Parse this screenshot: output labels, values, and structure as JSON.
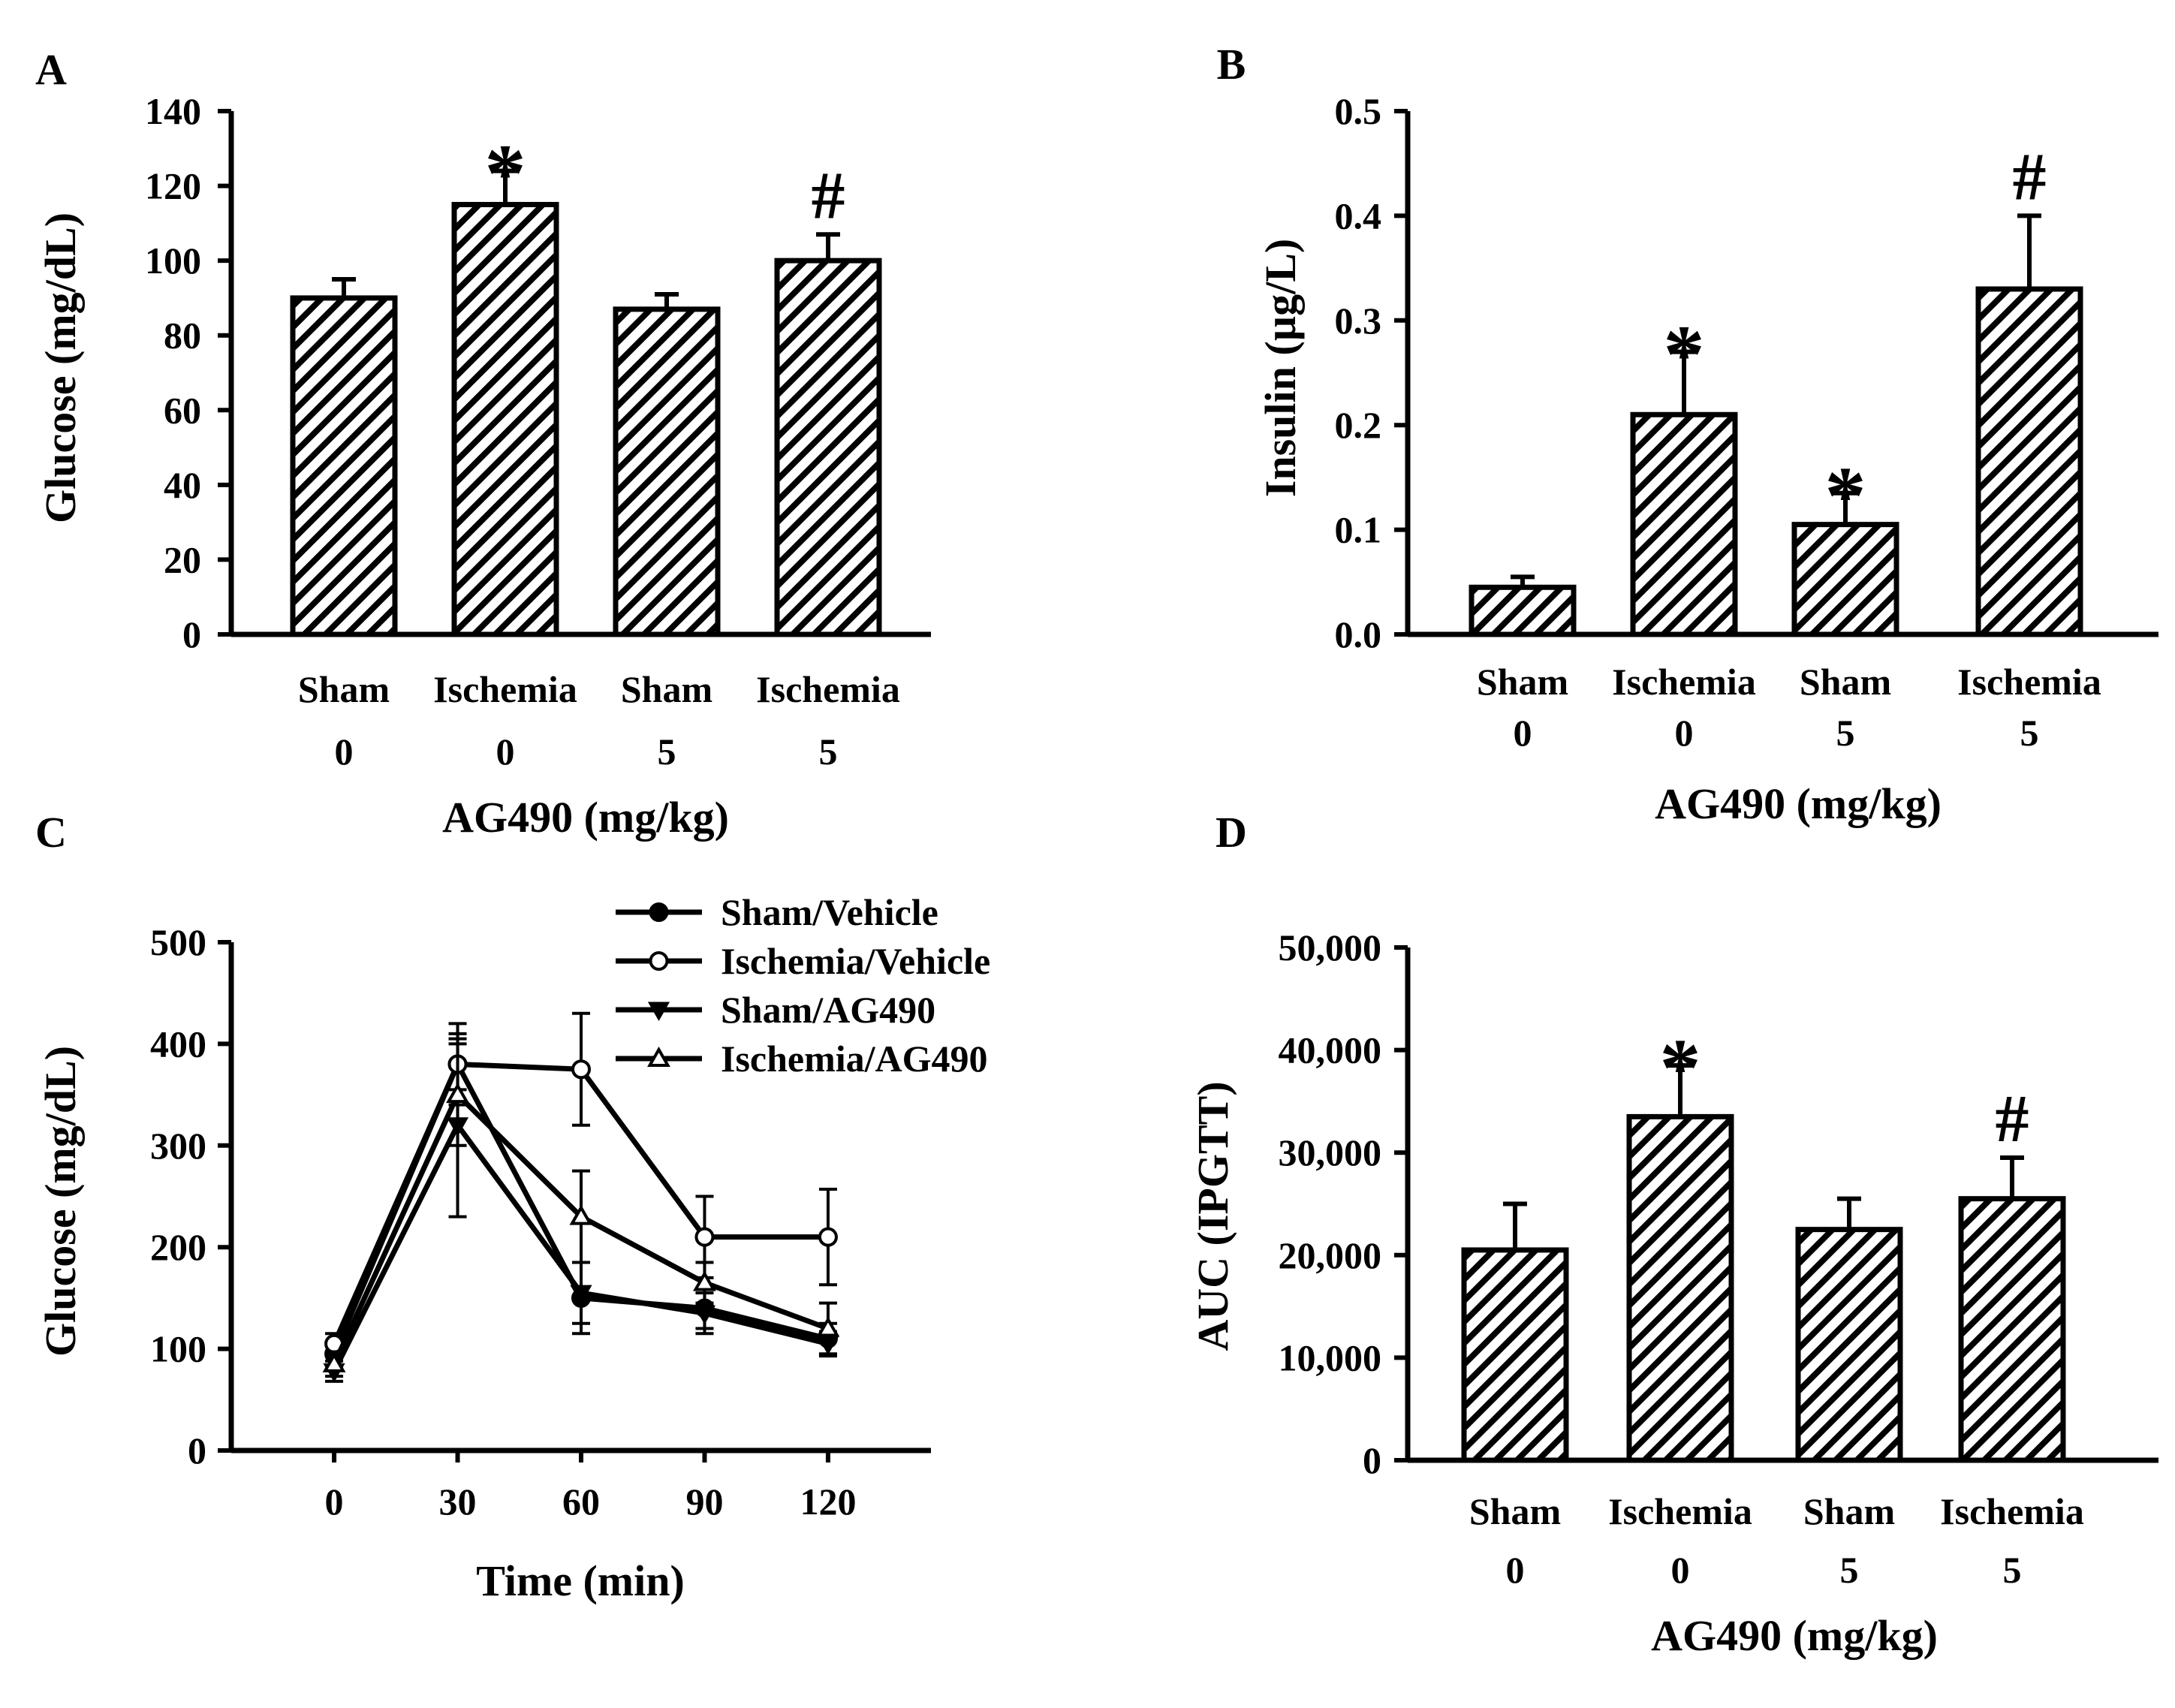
{
  "chart_data": [
    {
      "panel": "A",
      "type": "bar",
      "ylabel": "Glucose (mg/dL)",
      "xlabel": "AG490 (mg/kg)",
      "ylim": [
        0,
        140
      ],
      "yticks": [
        "0",
        "20",
        "40",
        "60",
        "80",
        "100",
        "120",
        "140"
      ],
      "categories": [
        "Sham",
        "Ischemia",
        "Sham",
        "Ischemia"
      ],
      "doses": [
        "0",
        "0",
        "5",
        "5"
      ],
      "values": [
        90,
        115,
        87,
        100
      ],
      "errors": [
        5,
        9,
        4,
        7
      ],
      "annotations": [
        "",
        "*",
        "",
        "#"
      ]
    },
    {
      "panel": "B",
      "type": "bar",
      "ylabel": "Insulin (µg/L)",
      "xlabel": "AG490 (mg/kg)",
      "ylim": [
        0,
        0.5
      ],
      "yticks": [
        "0.0",
        "0.1",
        "0.2",
        "0.3",
        "0.4",
        "0.5"
      ],
      "categories": [
        "Sham",
        "Ischemia",
        "Sham",
        "Ischemia"
      ],
      "doses": [
        "0",
        "0",
        "5",
        "5"
      ],
      "values": [
        0.045,
        0.21,
        0.105,
        0.33
      ],
      "errors": [
        0.01,
        0.06,
        0.03,
        0.07
      ],
      "annotations": [
        "",
        "*",
        "*",
        "#"
      ]
    },
    {
      "panel": "C",
      "type": "line",
      "ylabel": "Glucose (mg/dL)",
      "xlabel": "Time (min)",
      "ylim": [
        0,
        500
      ],
      "yticks": [
        "0",
        "100",
        "200",
        "300",
        "400",
        "500"
      ],
      "x": [
        0,
        30,
        60,
        90,
        120
      ],
      "xticks": [
        "0",
        "30",
        "60",
        "90",
        "120"
      ],
      "xlim": [
        -25,
        145
      ],
      "series": [
        {
          "name": "Sham/Vehicle",
          "marker": "filled-circle",
          "values": [
            95,
            380,
            150,
            140,
            110
          ],
          "errors": [
            12,
            25,
            35,
            20,
            15
          ]
        },
        {
          "name": "Ischemia/Vehicle",
          "marker": "open-circle",
          "values": [
            105,
            380,
            375,
            210,
            210
          ],
          "errors": [
            10,
            40,
            55,
            40,
            47
          ]
        },
        {
          "name": "Sham/AG490",
          "marker": "filled-triangle-down",
          "values": [
            78,
            320,
            155,
            135,
            105
          ],
          "errors": [
            10,
            90,
            30,
            20,
            12
          ]
        },
        {
          "name": "Ischemia/AG490",
          "marker": "open-triangle-up",
          "values": [
            85,
            350,
            230,
            165,
            120
          ],
          "errors": [
            12,
            50,
            45,
            20,
            25
          ]
        }
      ]
    },
    {
      "panel": "D",
      "type": "bar",
      "ylabel": "AUC (IPGTT)",
      "xlabel": "AG490 (mg/kg)",
      "ylim": [
        0,
        50000
      ],
      "yticks": [
        "0",
        "10,000",
        "20,000",
        "30,000",
        "40,000",
        "50,000"
      ],
      "categories": [
        "Sham",
        "Ischemia",
        "Sham",
        "Ischemia"
      ],
      "doses": [
        "0",
        "0",
        "5",
        "5"
      ],
      "values": [
        20500,
        33500,
        22500,
        25500
      ],
      "errors": [
        4500,
        5000,
        3000,
        4000
      ],
      "annotations": [
        "",
        "*",
        "",
        "#"
      ]
    }
  ]
}
